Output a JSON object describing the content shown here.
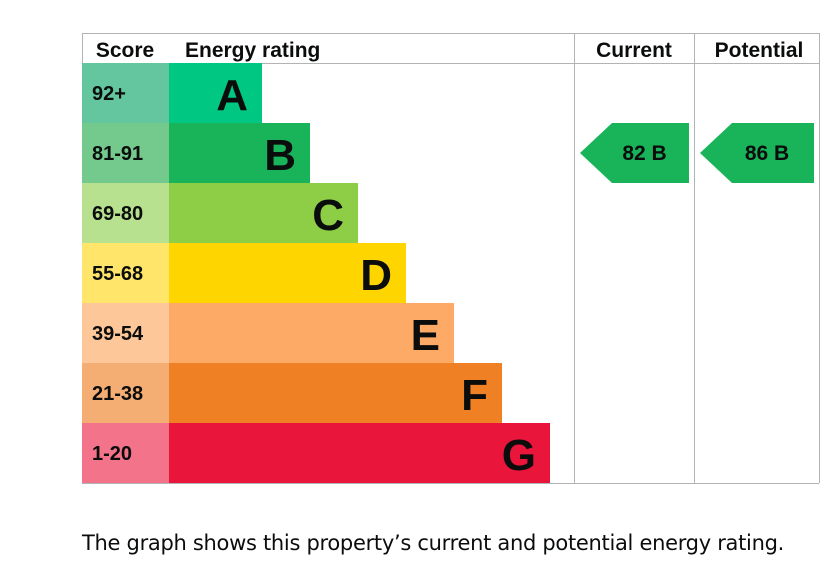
{
  "chart_data": {
    "type": "table",
    "headers": {
      "score": "Score",
      "rating": "Energy rating",
      "current": "Current",
      "potential": "Potential"
    },
    "bands": [
      {
        "score": "92+",
        "letter": "A",
        "color": "#00c781",
        "score_color": "#63c69f"
      },
      {
        "score": "81-91",
        "letter": "B",
        "color": "#19b459",
        "score_color": "#74c98d"
      },
      {
        "score": "69-80",
        "letter": "C",
        "color": "#8dce46",
        "score_color": "#b7e08f"
      },
      {
        "score": "55-68",
        "letter": "D",
        "color": "#ffd500",
        "score_color": "#ffe66a"
      },
      {
        "score": "39-54",
        "letter": "E",
        "color": "#fcaa65",
        "score_color": "#fdc79a"
      },
      {
        "score": "21-38",
        "letter": "F",
        "color": "#ef8023",
        "score_color": "#f4ae73"
      },
      {
        "score": "1-20",
        "letter": "G",
        "color": "#e9153b",
        "score_color": "#f2738a"
      }
    ],
    "current": {
      "value": 82,
      "band": "B",
      "label": "82  B"
    },
    "potential": {
      "value": 86,
      "band": "B",
      "label": "86  B"
    }
  },
  "caption": "The graph shows this property’s current and potential energy rating."
}
